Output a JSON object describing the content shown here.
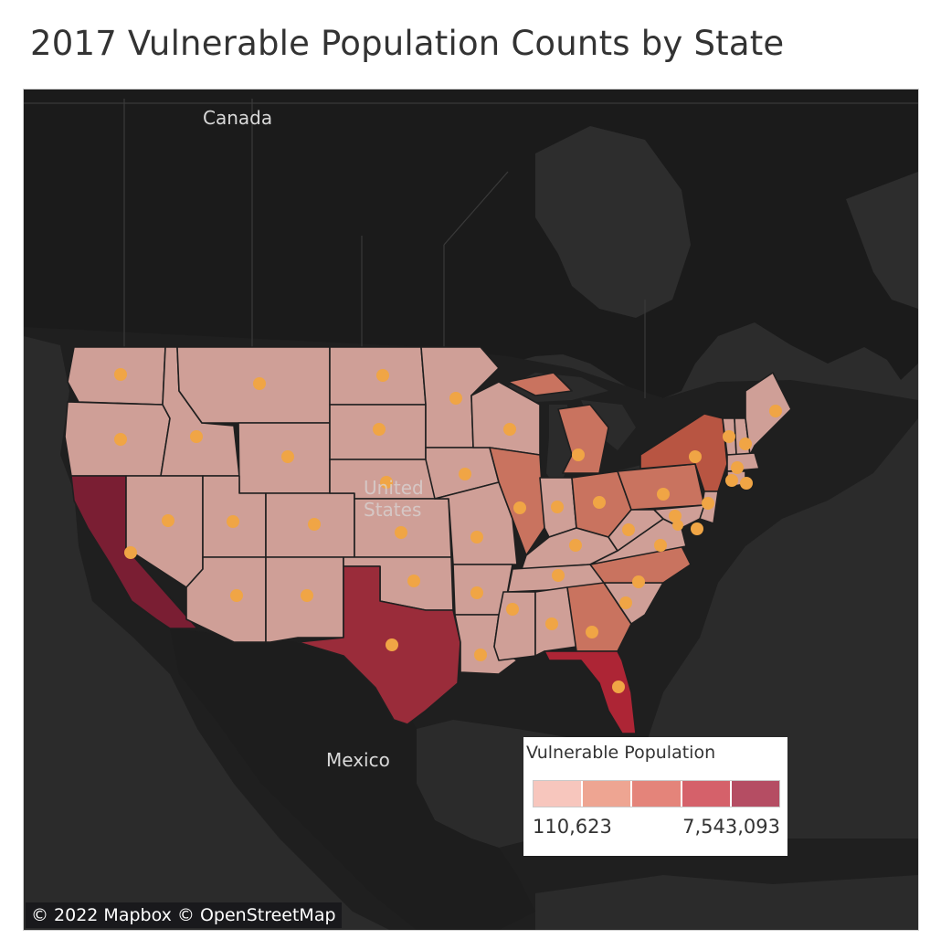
{
  "title": "2017 Vulnerable Population Counts by State",
  "map": {
    "labels": {
      "canada": "Canada",
      "united_states": "United States",
      "mexico": "Mexico"
    },
    "attribution": "© 2022 Mapbox  © OpenStreetMap"
  },
  "legend": {
    "title": "Vulnerable Population",
    "min_label": "110,623",
    "max_label": "7,543,093",
    "steps": [
      "#f7c6bd",
      "#eea592",
      "#e4847a",
      "#d5616a",
      "#b54d63"
    ]
  },
  "colors": {
    "basemap_water": "#2a2a2a",
    "basemap_land": "#1c1c1c",
    "state_border": "#1f1f1f",
    "marker": "#f0a545"
  },
  "chart_data": {
    "type": "map",
    "measure": "Vulnerable Population",
    "range": [
      110623,
      7543093
    ],
    "highlighted_states": {
      "California": "max",
      "Texas": "very high",
      "Florida": "very high",
      "New York": "high",
      "Pennsylvania": "medium-high",
      "Illinois": "medium-high",
      "Ohio": "medium-high",
      "Michigan": "medium-high",
      "Georgia": "medium-high",
      "North Carolina": "medium-high"
    }
  }
}
